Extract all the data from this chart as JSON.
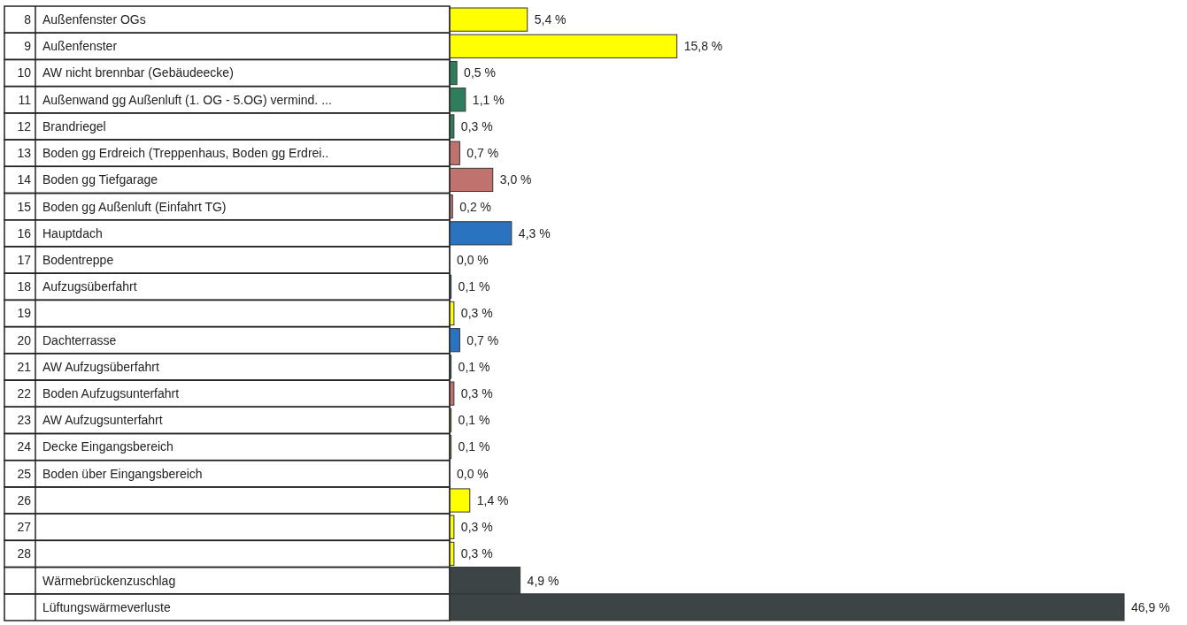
{
  "chart_data": {
    "type": "bar",
    "orientation": "horizontal",
    "categories": [
      "Außenfenster OGs",
      "Außenfenster",
      "AW nicht brennbar (Gebäudeecke)",
      "Außenwand gg Außenluft (1. OG - 5.OG) vermind. ...",
      "Brandriegel",
      "Boden gg Erdreich (Treppenhaus, Boden gg Erdrei..",
      "Boden gg Tiefgarage",
      "Boden gg Außenluft (Einfahrt TG)",
      "Hauptdach",
      "Bodentreppe",
      "Aufzugsüberfahrt",
      null,
      "Dachterrasse",
      "AW Aufzugsüberfahrt",
      "Boden Aufzugsunterfahrt",
      "AW Aufzugsunterfahrt",
      "Decke Eingangsbereich",
      "Boden über Eingangsbereich",
      null,
      null,
      null,
      "Wärmebrückenzuschlag",
      "Lüftungswärmeverluste"
    ],
    "y2_categories": [
      "8",
      "9",
      "10",
      "11",
      "12",
      "13",
      "14",
      "15",
      "16",
      "17",
      "18",
      "19",
      "20",
      "21",
      "22",
      "23",
      "24",
      "25",
      "26",
      "27",
      "28",
      null,
      null
    ],
    "values": [
      5.4,
      15.8,
      0.5,
      1.1,
      0.3,
      0.7,
      3.0,
      0.2,
      4.3,
      0.0,
      0.1,
      0.3,
      0.7,
      0.1,
      0.3,
      0.1,
      0.1,
      0.0,
      1.4,
      0.3,
      0.3,
      4.9,
      46.9
    ],
    "value_labels": [
      "5,4 %",
      "15,8 %",
      "0,5 %",
      "1,1 %",
      "0,3 %",
      "0,7 %",
      "3,0 %",
      "0,2 %",
      "4,3 %",
      "0,0 %",
      "0,1 %",
      "0,3 %",
      "0,7 %",
      "0,1 %",
      "0,3 %",
      "0,1 %",
      "0,1 %",
      "0,0 %",
      "1,4 %",
      "0,3 %",
      "0,3 %",
      "4,9 %",
      "46,9 %"
    ],
    "colors": [
      "#ffff00",
      "#ffff00",
      "#2e7d5b",
      "#2e7d5b",
      "#2e7d5b",
      "#c0736e",
      "#c0736e",
      "#c0736e",
      "#2a73c0",
      "#2a73c0",
      "#2a73c0",
      "#ffff00",
      "#2a73c0",
      "#2e7d5b",
      "#c0736e",
      "#ffff00",
      "#ffff00",
      "#ffff00",
      "#ffff00",
      "#ffff00",
      "#ffff00",
      "#3c4446",
      "#3c4446"
    ]
  }
}
